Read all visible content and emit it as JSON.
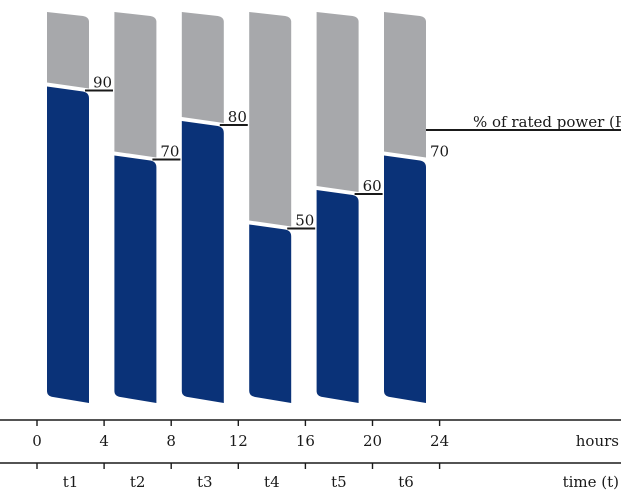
{
  "chart_data": {
    "type": "bar",
    "categories": [
      "t1",
      "t2",
      "t3",
      "t4",
      "t5",
      "t6"
    ],
    "values": [
      90,
      70,
      80,
      50,
      60,
      70
    ],
    "value_labels": [
      "90",
      "70",
      "80",
      "50",
      "60",
      "70"
    ],
    "ylim": [
      0,
      100
    ],
    "ylabel": "% of rated power (P)",
    "hours_axis": {
      "ticks": [
        "0",
        "4",
        "8",
        "12",
        "16",
        "20",
        "24"
      ],
      "unit_label": "hours"
    },
    "time_axis": {
      "labels": [
        "t1",
        "t2",
        "t3",
        "t4",
        "t5",
        "t6"
      ],
      "unit_label": "time (t)"
    },
    "colors": {
      "load": "#0a3278",
      "remainder": "#a7a8ab",
      "line": "#1a1a1a"
    }
  }
}
